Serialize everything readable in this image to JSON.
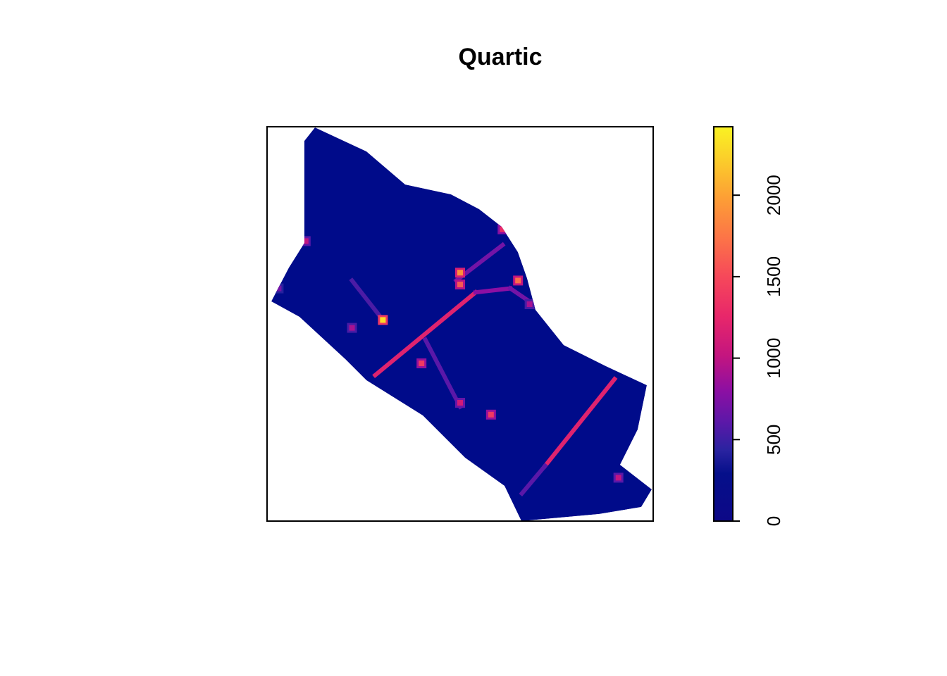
{
  "chart_data": {
    "type": "heatmap",
    "title": "Quartic",
    "xlabel": "",
    "ylabel": "",
    "axes_shown": false,
    "value_range": [
      0,
      2420
    ],
    "colorbar": {
      "position": "right",
      "ticks": [
        0,
        500,
        1000,
        1500,
        2000
      ],
      "tick_labels": [
        "0",
        "500",
        "1000",
        "1500",
        "2000"
      ],
      "colors": [
        {
          "at": 0.0,
          "color": "#0d0887"
        },
        {
          "at": 0.12,
          "color": "#050f8a"
        },
        {
          "at": 0.18,
          "color": "#2a23a0"
        },
        {
          "at": 0.25,
          "color": "#5b18a8"
        },
        {
          "at": 0.33,
          "color": "#8c0fa3"
        },
        {
          "at": 0.42,
          "color": "#c4157f"
        },
        {
          "at": 0.52,
          "color": "#e8276a"
        },
        {
          "at": 0.62,
          "color": "#f6485a"
        },
        {
          "at": 0.72,
          "color": "#fc7547"
        },
        {
          "at": 0.82,
          "color": "#fd9f35"
        },
        {
          "at": 0.92,
          "color": "#fbcf2a"
        },
        {
          "at": 1.0,
          "color": "#f9f223"
        }
      ]
    },
    "background_value": 60,
    "background_color": "#000b8a",
    "hotspots": [
      {
        "x": 0.3,
        "y": 0.49,
        "value": 2300
      },
      {
        "x": 0.5,
        "y": 0.37,
        "value": 1900
      },
      {
        "x": 0.5,
        "y": 0.4,
        "value": 1600
      },
      {
        "x": 0.65,
        "y": 0.39,
        "value": 1700
      },
      {
        "x": 0.61,
        "y": 0.26,
        "value": 1300
      },
      {
        "x": 0.4,
        "y": 0.6,
        "value": 1400
      },
      {
        "x": 0.58,
        "y": 0.73,
        "value": 1400
      },
      {
        "x": 0.5,
        "y": 0.7,
        "value": 1100
      },
      {
        "x": 0.22,
        "y": 0.51,
        "value": 900
      },
      {
        "x": 0.1,
        "y": 0.29,
        "value": 1000
      },
      {
        "x": 0.03,
        "y": 0.41,
        "value": 700
      },
      {
        "x": 0.68,
        "y": 0.45,
        "value": 900
      },
      {
        "x": 0.91,
        "y": 0.89,
        "value": 1000
      }
    ],
    "streets": [
      {
        "from": [
          0.28,
          0.63
        ],
        "to": [
          0.54,
          0.42
        ],
        "value": 1200
      },
      {
        "from": [
          0.54,
          0.42
        ],
        "to": [
          0.63,
          0.41
        ],
        "value": 800
      },
      {
        "from": [
          0.63,
          0.41
        ],
        "to": [
          0.69,
          0.45
        ],
        "value": 700
      },
      {
        "from": [
          0.9,
          0.64
        ],
        "to": [
          0.72,
          0.86
        ],
        "value": 1200
      },
      {
        "from": [
          0.72,
          0.86
        ],
        "to": [
          0.66,
          0.93
        ],
        "value": 600
      },
      {
        "from": [
          0.61,
          0.3
        ],
        "to": [
          0.49,
          0.39
        ],
        "value": 700
      },
      {
        "from": [
          0.41,
          0.54
        ],
        "to": [
          0.5,
          0.71
        ],
        "value": 600
      },
      {
        "from": [
          0.22,
          0.39
        ],
        "to": [
          0.3,
          0.49
        ],
        "value": 550
      }
    ]
  }
}
